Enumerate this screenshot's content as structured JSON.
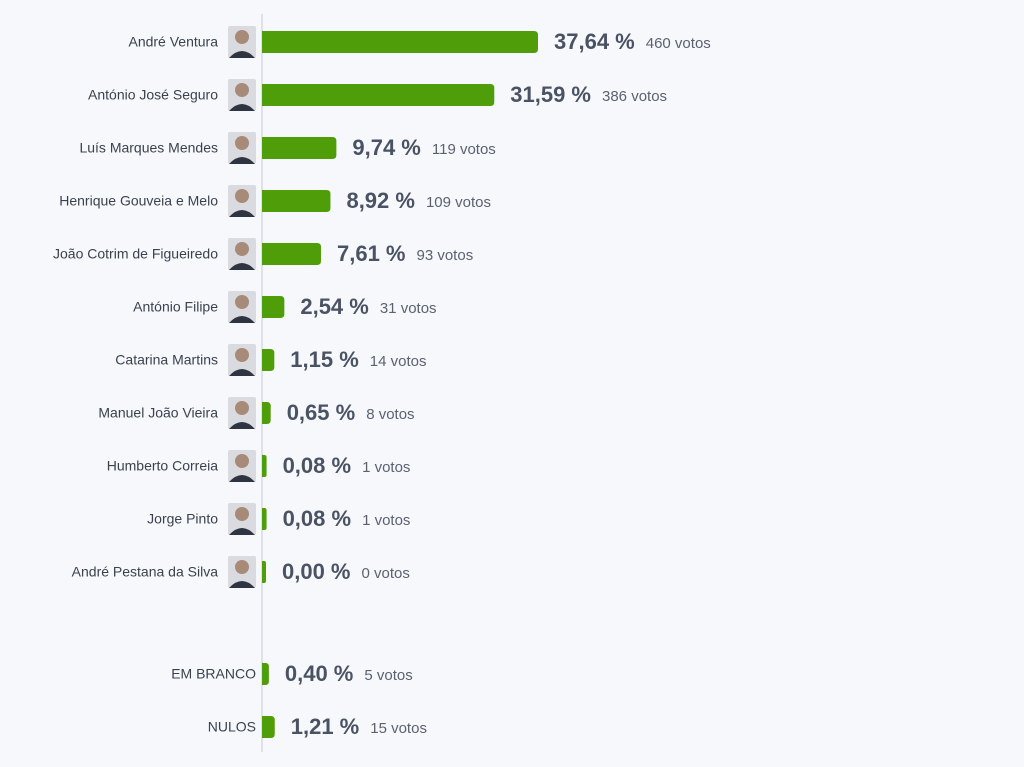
{
  "chart_data": {
    "type": "hbar",
    "categories": [
      "André Ventura",
      "António José Seguro",
      "Luís Marques Mendes",
      "Henrique Gouveia e Melo",
      "João Cotrim de Figueiredo",
      "António Filipe",
      "Catarina Martins",
      "Manuel João Vieira",
      "Humberto Correia",
      "Jorge Pinto",
      "André Pestana da Silva",
      "EM BRANCO",
      "NULOS"
    ],
    "values": [
      37.64,
      31.59,
      9.74,
      8.92,
      7.61,
      2.54,
      1.15,
      0.65,
      0.08,
      0.08,
      0.0,
      0.4,
      1.21
    ],
    "value_labels": [
      "37,64 %",
      "31,59 %",
      "9,74 %",
      "8,92 %",
      "7,61 %",
      "2,54 %",
      "1,15 %",
      "0,65 %",
      "0,08 %",
      "0,08 %",
      "0,00 %",
      "0,40 %",
      "1,21 %"
    ],
    "votes": [
      460,
      386,
      119,
      109,
      93,
      31,
      14,
      8,
      1,
      1,
      0,
      5,
      15
    ],
    "vote_labels": [
      "460 votos",
      "386 votos",
      "119 votos",
      "109 votos",
      "93 votos",
      "31 votos",
      "14 votos",
      "8 votos",
      "1 votos",
      "1 votos",
      "0 votos",
      "5 votos",
      "15 votos"
    ],
    "color": "#4f9d08"
  }
}
